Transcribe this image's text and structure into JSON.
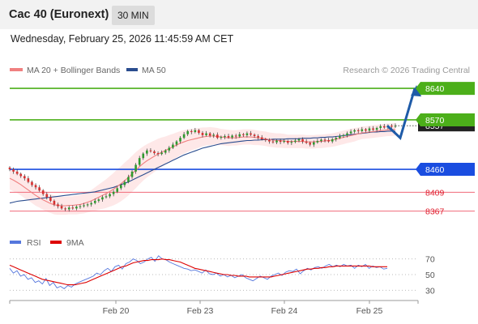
{
  "header": {
    "title": "Cac 40 (Euronext)",
    "timeframe": "30 MIN"
  },
  "datetime": "Wednesday, February 25, 2026 11:45:59 AM CET",
  "legend": {
    "ma20": "MA 20 + Bollinger Bands",
    "ma50": "MA 50",
    "credit": "Research © 2026 Trading Central",
    "rsi": "RSI",
    "ma9": "9MA"
  },
  "colors": {
    "target": "#4caf1a",
    "pivot": "#1a4de0",
    "support": "#f06a7a",
    "arrow": "#1e5ba8",
    "ma20": "#f08080",
    "ma50": "#2a4d8f",
    "bollinger_fill": "#fde0e0",
    "rsi": "#5577dd",
    "ma9": "#dd0000",
    "candle_up": "#2e9a2e",
    "candle_down": "#d63030"
  },
  "chart_data": [
    {
      "type": "candlestick",
      "title": "Cac 40 (Euronext)",
      "timeframe": "30 MIN",
      "ylim": [
        8325,
        8660
      ],
      "x_tick_labels": [
        "Feb 20",
        "Feb 23",
        "Feb 24",
        "Feb 25"
      ],
      "last_price": 8557,
      "levels": [
        {
          "value": 8640,
          "label": "8640",
          "role": "target"
        },
        {
          "value": 8570,
          "label": "8570",
          "role": "target"
        },
        {
          "value": 8460,
          "label": "8460",
          "role": "pivot"
        },
        {
          "value": 8409,
          "label": "8409",
          "role": "support"
        },
        {
          "value": 8367,
          "label": "8367",
          "role": "support"
        }
      ],
      "forecast_path": [
        8557,
        8530,
        8640
      ],
      "close_series": [
        8460,
        8455,
        8450,
        8445,
        8440,
        8432,
        8425,
        8420,
        8413,
        8405,
        8398,
        8390,
        8382,
        8378,
        8373,
        8371,
        8375,
        8373,
        8377,
        8378,
        8380,
        8382,
        8385,
        8390,
        8393,
        8398,
        8400,
        8405,
        8410,
        8418,
        8425,
        8432,
        8443,
        8455,
        8470,
        8485,
        8495,
        8502,
        8500,
        8496,
        8494,
        8497,
        8502,
        8508,
        8515,
        8522,
        8530,
        8538,
        8545,
        8543,
        8547,
        8541,
        8536,
        8540,
        8535,
        8537,
        8530,
        8532,
        8534,
        8531,
        8535,
        8533,
        8538,
        8536,
        8540,
        8537,
        8534,
        8531,
        8527,
        8525,
        8522,
        8520,
        8524,
        8521,
        8523,
        8519,
        8521,
        8524,
        8527,
        8522,
        8519,
        8515,
        8520,
        8523,
        8526,
        8525,
        8522,
        8527,
        8530,
        8534,
        8536,
        8540,
        8544,
        8547,
        8545,
        8549,
        8546,
        8551,
        8548,
        8552,
        8556,
        8553,
        8557,
        8555,
        8557
      ],
      "ma20_series": [
        8440,
        8436,
        8431,
        8426,
        8420,
        8414,
        8408,
        8402,
        8397,
        8392,
        8388,
        8384,
        8381,
        8380,
        8379,
        8379,
        8380,
        8380,
        8381,
        8382,
        8384,
        8387,
        8390,
        8394,
        8398,
        8402,
        8406,
        8411,
        8416,
        8422,
        8428,
        8435,
        8442,
        8450,
        8458,
        8466,
        8473,
        8479,
        8484,
        8489,
        8494,
        8498,
        8502,
        8506,
        8510,
        8514,
        8518,
        8521,
        8524,
        8526,
        8528,
        8530,
        8532,
        8533,
        8534,
        8534,
        8533,
        8532,
        8531,
        8530,
        8530,
        8530,
        8531,
        8532,
        8532,
        8532,
        8531,
        8530,
        8529,
        8528,
        8526,
        8525,
        8524,
        8524,
        8523,
        8522,
        8522,
        8522,
        8522,
        8522,
        8521,
        8521,
        8521,
        8522,
        8522,
        8523,
        8524,
        8525,
        8527,
        8529,
        8531,
        8533,
        8535,
        8537,
        8539,
        8541,
        8542,
        8543,
        8544,
        8545,
        8546,
        8547,
        8548,
        8548,
        8549
      ],
      "ma50_series": [
        8385,
        8387,
        8389,
        8390,
        8391,
        8392,
        8393,
        8394,
        8395,
        8396,
        8397,
        8398,
        8399,
        8400,
        8401,
        8402,
        8403,
        8404,
        8405,
        8406,
        8407,
        8408,
        8409,
        8410,
        8412,
        8414,
        8416,
        8418,
        8420,
        8423,
        8426,
        8429,
        8432,
        8436,
        8440,
        8444,
        8448,
        8452,
        8456,
        8460,
        8464,
        8468,
        8472,
        8476,
        8480,
        8484,
        8488,
        8492,
        8495,
        8498,
        8501,
        8504,
        8507,
        8509,
        8511,
        8513,
        8515,
        8517,
        8518,
        8519,
        8520,
        8521,
        8522,
        8523,
        8524,
        8524,
        8525,
        8525,
        8526,
        8526,
        8526,
        8527,
        8527,
        8527,
        8527,
        8528,
        8528,
        8528,
        8528,
        8529,
        8529,
        8529,
        8530,
        8530,
        8531,
        8531,
        8532,
        8532,
        8533,
        8534,
        8535,
        8536,
        8537,
        8538,
        8539,
        8540,
        8541,
        8542,
        8543,
        8543,
        8544,
        8544,
        8545,
        8545,
        8545
      ],
      "bollinger_halfwidth": [
        25,
        25,
        24,
        24,
        24,
        23,
        23,
        23,
        22,
        22,
        22,
        21,
        21,
        21,
        20,
        20,
        20,
        20,
        21,
        21,
        22,
        23,
        24,
        26,
        28,
        30,
        32,
        34,
        36,
        38,
        39,
        40,
        40,
        40,
        40,
        39,
        38,
        37,
        36,
        35,
        34,
        33,
        31,
        30,
        29,
        28,
        27,
        26,
        25,
        24,
        23,
        22,
        21,
        20,
        20,
        19,
        19,
        18,
        18,
        18,
        17,
        17,
        17,
        17,
        17,
        17,
        17,
        16,
        16,
        16,
        16,
        16,
        16,
        16,
        16,
        15,
        15,
        15,
        15,
        15,
        15,
        15,
        15,
        15,
        15,
        15,
        15,
        15,
        15,
        15,
        15,
        15,
        15,
        15,
        14,
        14,
        14,
        14,
        14,
        14,
        14,
        14,
        14,
        14,
        14
      ]
    },
    {
      "type": "line",
      "title": "RSI",
      "ylim": [
        20,
        80
      ],
      "y_ticks": [
        70,
        50,
        30
      ],
      "x_tick_labels": [
        "Feb 20",
        "Feb 23",
        "Feb 24",
        "Feb 25"
      ],
      "series": [
        {
          "name": "RSI",
          "values": [
            58,
            52,
            55,
            48,
            50,
            44,
            46,
            40,
            42,
            38,
            45,
            36,
            40,
            33,
            35,
            32,
            36,
            34,
            38,
            40,
            42,
            44,
            46,
            48,
            52,
            50,
            55,
            58,
            54,
            60,
            62,
            57,
            64,
            66,
            70,
            68,
            64,
            66,
            70,
            72,
            67,
            74,
            70,
            69,
            66,
            64,
            62,
            60,
            58,
            57,
            55,
            56,
            54,
            52,
            56,
            51,
            50,
            52,
            48,
            50,
            47,
            49,
            46,
            48,
            50,
            46,
            44,
            42,
            45,
            48,
            46,
            44,
            48,
            50,
            52,
            49,
            53,
            55,
            54,
            57,
            51,
            55,
            58,
            56,
            59,
            60,
            58,
            61,
            63,
            60,
            62,
            60,
            63,
            61,
            62,
            58,
            62,
            60,
            63,
            58,
            61,
            59,
            60,
            57,
            58
          ]
        },
        {
          "name": "9MA",
          "values": [
            62,
            60,
            58,
            56,
            54,
            52,
            50,
            48,
            46,
            44,
            43,
            42,
            41,
            40,
            39,
            38,
            37,
            37,
            37,
            38,
            39,
            40,
            42,
            44,
            46,
            48,
            50,
            52,
            54,
            56,
            58,
            60,
            61,
            63,
            65,
            66,
            67,
            68,
            68,
            69,
            69,
            69,
            70,
            69,
            69,
            68,
            67,
            66,
            64,
            62,
            60,
            58,
            57,
            56,
            55,
            54,
            53,
            52,
            51,
            50,
            50,
            49,
            49,
            48,
            48,
            48,
            47,
            47,
            47,
            47,
            47,
            47,
            47,
            48,
            49,
            50,
            51,
            52,
            53,
            54,
            55,
            56,
            57,
            57,
            58,
            58,
            59,
            59,
            60,
            60,
            61,
            61,
            61,
            61,
            61,
            61,
            61,
            61,
            61,
            61,
            60,
            60,
            60,
            60,
            60
          ]
        }
      ]
    }
  ]
}
